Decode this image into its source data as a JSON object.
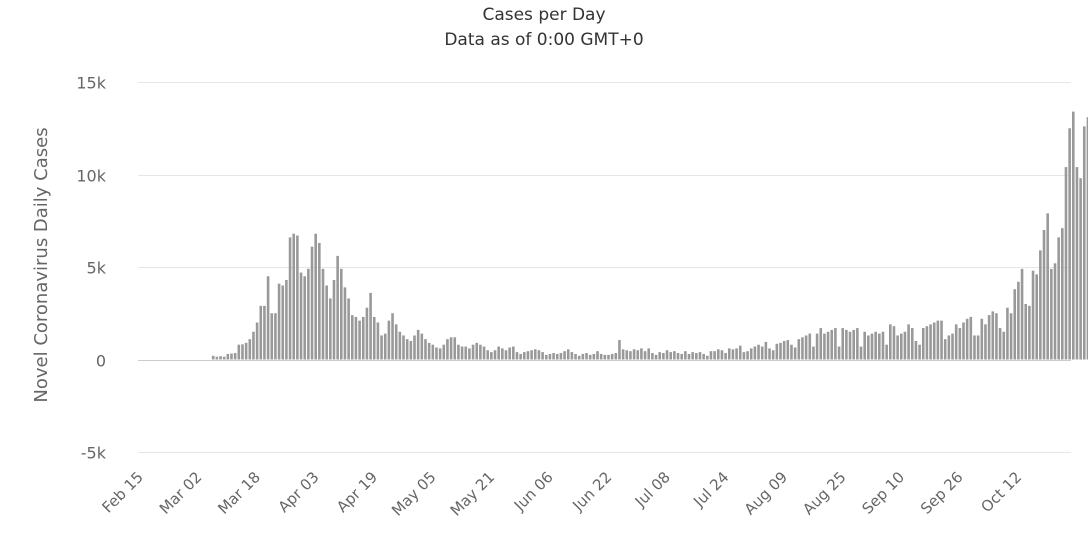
{
  "chart_data": {
    "type": "bar",
    "title": "Cases per Day",
    "subtitle": "Data as of 0:00 GMT+0",
    "ylabel": "Novel Coronavirus Daily Cases",
    "xlabel": "",
    "ylim": [
      -5000,
      15000
    ],
    "yticks": [
      -5000,
      0,
      5000,
      10000,
      15000
    ],
    "ytick_labels": [
      "-5k",
      "0",
      "5k",
      "10k",
      "15k"
    ],
    "x_start": "Feb 15",
    "x_tick_labels": [
      "Feb 15",
      "Mar 02",
      "Mar 18",
      "Apr 03",
      "Apr 19",
      "May 05",
      "May 21",
      "Jun 06",
      "Jun 22",
      "Jul 08",
      "Jul 24",
      "Aug 09",
      "Aug 25",
      "Sep 10",
      "Sep 26",
      "Oct 12"
    ],
    "grid": true,
    "colors": {
      "bar": "#999999",
      "grid": "#e6e6e6",
      "zero_line": "#cccccc"
    },
    "values": [
      0,
      0,
      0,
      0,
      0,
      0,
      0,
      0,
      0,
      0,
      0,
      0,
      0,
      0,
      0,
      0,
      0,
      0,
      0,
      0,
      200,
      150,
      180,
      150,
      300,
      320,
      350,
      800,
      820,
      900,
      1100,
      1500,
      2000,
      2900,
      2900,
      4500,
      2500,
      2500,
      4100,
      4000,
      4300,
      6600,
      6800,
      6700,
      4700,
      4500,
      4900,
      6100,
      6800,
      6300,
      4900,
      4000,
      3300,
      4300,
      5600,
      4900,
      3900,
      3300,
      2400,
      2300,
      2100,
      2300,
      2800,
      3600,
      2300,
      2000,
      1300,
      1400,
      2100,
      2500,
      1900,
      1500,
      1300,
      1100,
      1000,
      1300,
      1600,
      1400,
      1100,
      900,
      800,
      650,
      600,
      800,
      1100,
      1200,
      1200,
      800,
      700,
      700,
      600,
      800,
      900,
      800,
      700,
      500,
      400,
      500,
      700,
      600,
      500,
      650,
      700,
      400,
      300,
      400,
      450,
      500,
      550,
      500,
      400,
      250,
      300,
      350,
      300,
      350,
      450,
      550,
      400,
      300,
      200,
      300,
      350,
      250,
      300,
      450,
      300,
      250,
      250,
      300,
      350,
      1050,
      550,
      500,
      450,
      550,
      500,
      600,
      450,
      600,
      350,
      250,
      400,
      350,
      500,
      400,
      450,
      350,
      300,
      450,
      300,
      400,
      350,
      400,
      300,
      200,
      450,
      450,
      550,
      500,
      350,
      600,
      550,
      600,
      750,
      400,
      450,
      600,
      700,
      800,
      700,
      950,
      600,
      500,
      850,
      900,
      1000,
      1050,
      800,
      650,
      1100,
      1200,
      1300,
      1400,
      700,
      1400,
      1700,
      1400,
      1500,
      1600,
      1700,
      700,
      1700,
      1600,
      1500,
      1600,
      1700,
      700,
      1500,
      1300,
      1400,
      1500,
      1400,
      1500,
      800,
      1900,
      1800,
      1300,
      1400,
      1500,
      1900,
      1700,
      1000,
      800,
      1700,
      1800,
      1900,
      2000,
      2100,
      2100,
      1100,
      1300,
      1400,
      1900,
      1700,
      2000,
      2200,
      2300,
      1300,
      1300,
      2200,
      1900,
      2400,
      2600,
      2500,
      1700,
      1500,
      2800,
      2500,
      3800,
      4200,
      4900,
      3000,
      2900,
      4800,
      4600,
      5900,
      7000,
      7900,
      4900,
      5200,
      6600,
      7100,
      10400,
      12500,
      13400,
      10400,
      9800,
      12600,
      13100
    ]
  }
}
